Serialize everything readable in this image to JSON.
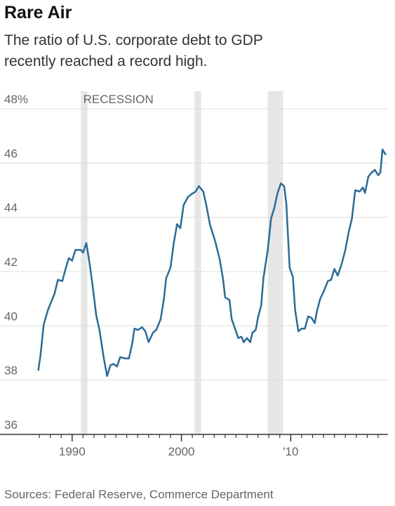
{
  "chart_data": {
    "type": "line",
    "title": "Rare Air",
    "subtitle": [
      "The ratio of U.S. corporate debt to GDP",
      "recently reached a record high."
    ],
    "source": "Sources: Federal Reserve, Commerce Department",
    "annotation": "RECESSION",
    "recessions": [
      [
        1990.8,
        1991.4
      ],
      [
        2001.2,
        2001.8
      ],
      [
        2007.9,
        2009.3
      ]
    ],
    "xlim": [
      1983.4,
      2018.9
    ],
    "ylim": [
      36,
      48
    ],
    "yticks": [
      36,
      38,
      40,
      42,
      44,
      46,
      {
        "value": 48,
        "label": "48%"
      }
    ],
    "xticks": [
      1990,
      2000,
      {
        "value": 2010,
        "label": "'10"
      }
    ],
    "xticks_minor": [
      1987,
      1988,
      1989,
      1991,
      1992,
      1993,
      1994,
      1995,
      1996,
      1997,
      1998,
      1999,
      2001,
      2002,
      2003,
      2004,
      2005,
      2006,
      2007,
      2008,
      2009,
      2011,
      2012,
      2013,
      2014,
      2015,
      2016,
      2017,
      2018
    ],
    "grid": true,
    "series": [
      {
        "color": "#2a6b96",
        "x": [
          1986.9,
          1987.1,
          1987.4,
          1987.8,
          1988.1,
          1988.4,
          1988.7,
          1989.1,
          1989.4,
          1989.7,
          1990.0,
          1990.3,
          1990.8,
          1991.0,
          1991.3,
          1991.6,
          1991.9,
          1992.2,
          1992.5,
          1992.9,
          1993.2,
          1993.5,
          1993.8,
          1994.1,
          1994.4,
          1994.8,
          1995.2,
          1995.5,
          1995.7,
          1996.0,
          1996.4,
          1996.7,
          1997.0,
          1997.4,
          1997.7,
          1998.1,
          1998.4,
          1998.6,
          1999.0,
          1999.3,
          1999.6,
          1999.9,
          2000.2,
          2000.6,
          2000.9,
          2001.3,
          2001.6,
          2002.0,
          2002.3,
          2002.6,
          2003.1,
          2003.5,
          2003.8,
          2004.0,
          2004.4,
          2004.6,
          2004.95,
          2005.2,
          2005.5,
          2005.7,
          2006.0,
          2006.3,
          2006.5,
          2006.8,
          2007.0,
          2007.3,
          2007.5,
          2007.9,
          2008.2,
          2008.5,
          2008.8,
          2009.1,
          2009.4,
          2009.6,
          2009.9,
          2010.2,
          2010.4,
          2010.7,
          2011.0,
          2011.3,
          2011.6,
          2011.9,
          2012.2,
          2012.4,
          2012.7,
          2013.0,
          2013.4,
          2013.7,
          2014.0,
          2014.3,
          2014.6,
          2015.0,
          2015.3,
          2015.6,
          2015.9,
          2016.3,
          2016.6,
          2016.8,
          2017.1,
          2017.4,
          2017.7,
          2018.0,
          2018.2,
          2018.4,
          2018.7
        ],
        "values": [
          38.35,
          38.9,
          40.05,
          40.6,
          40.9,
          41.2,
          41.7,
          41.65,
          42.1,
          42.5,
          42.4,
          42.8,
          42.8,
          42.7,
          43.05,
          42.3,
          41.4,
          40.4,
          39.85,
          38.8,
          38.15,
          38.55,
          38.6,
          38.5,
          38.85,
          38.8,
          38.8,
          39.35,
          39.9,
          39.85,
          39.95,
          39.8,
          39.4,
          39.75,
          39.85,
          40.25,
          41.0,
          41.75,
          42.15,
          43.05,
          43.75,
          43.6,
          44.45,
          44.75,
          44.85,
          44.95,
          45.15,
          44.95,
          44.4,
          43.75,
          43.1,
          42.45,
          41.75,
          41.05,
          40.95,
          40.25,
          39.85,
          39.55,
          39.6,
          39.4,
          39.55,
          39.4,
          39.75,
          39.85,
          40.3,
          40.75,
          41.75,
          42.8,
          43.95,
          44.35,
          44.9,
          45.25,
          45.15,
          44.5,
          42.15,
          41.8,
          40.6,
          39.8,
          39.9,
          39.9,
          40.35,
          40.3,
          40.1,
          40.55,
          41.0,
          41.25,
          41.65,
          41.7,
          42.1,
          41.85,
          42.2,
          42.8,
          43.45,
          43.95,
          45.0,
          44.95,
          45.1,
          44.9,
          45.5,
          45.65,
          45.75,
          45.55,
          45.65,
          46.5,
          46.3
        ]
      }
    ]
  }
}
